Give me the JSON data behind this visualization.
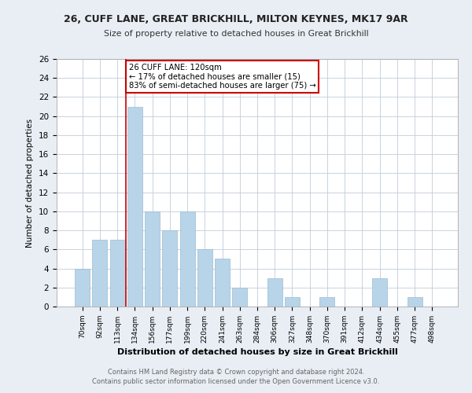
{
  "title1": "26, CUFF LANE, GREAT BRICKHILL, MILTON KEYNES, MK17 9AR",
  "title2": "Size of property relative to detached houses in Great Brickhill",
  "xlabel": "Distribution of detached houses by size in Great Brickhill",
  "ylabel": "Number of detached properties",
  "footer1": "Contains HM Land Registry data © Crown copyright and database right 2024.",
  "footer2": "Contains public sector information licensed under the Open Government Licence v3.0.",
  "categories": [
    "70sqm",
    "92sqm",
    "113sqm",
    "134sqm",
    "156sqm",
    "177sqm",
    "199sqm",
    "220sqm",
    "241sqm",
    "263sqm",
    "284sqm",
    "306sqm",
    "327sqm",
    "348sqm",
    "370sqm",
    "391sqm",
    "412sqm",
    "434sqm",
    "455sqm",
    "477sqm",
    "498sqm"
  ],
  "values": [
    4,
    7,
    7,
    21,
    10,
    8,
    10,
    6,
    5,
    2,
    0,
    3,
    1,
    0,
    1,
    0,
    0,
    3,
    0,
    1,
    0
  ],
  "bar_color": "#b8d4e8",
  "bar_edgecolor": "#9abcd4",
  "vline_x": 2.5,
  "vline_color": "#cc0000",
  "annotation_text": "26 CUFF LANE: 120sqm\n← 17% of detached houses are smaller (15)\n83% of semi-detached houses are larger (75) →",
  "annotation_box_facecolor": "#ffffff",
  "annotation_box_edgecolor": "#cc0000",
  "ylim": [
    0,
    26
  ],
  "yticks": [
    0,
    2,
    4,
    6,
    8,
    10,
    12,
    14,
    16,
    18,
    20,
    22,
    24,
    26
  ],
  "background_color": "#e8eef4",
  "plot_background": "#ffffff",
  "grid_color": "#c0ccd8"
}
